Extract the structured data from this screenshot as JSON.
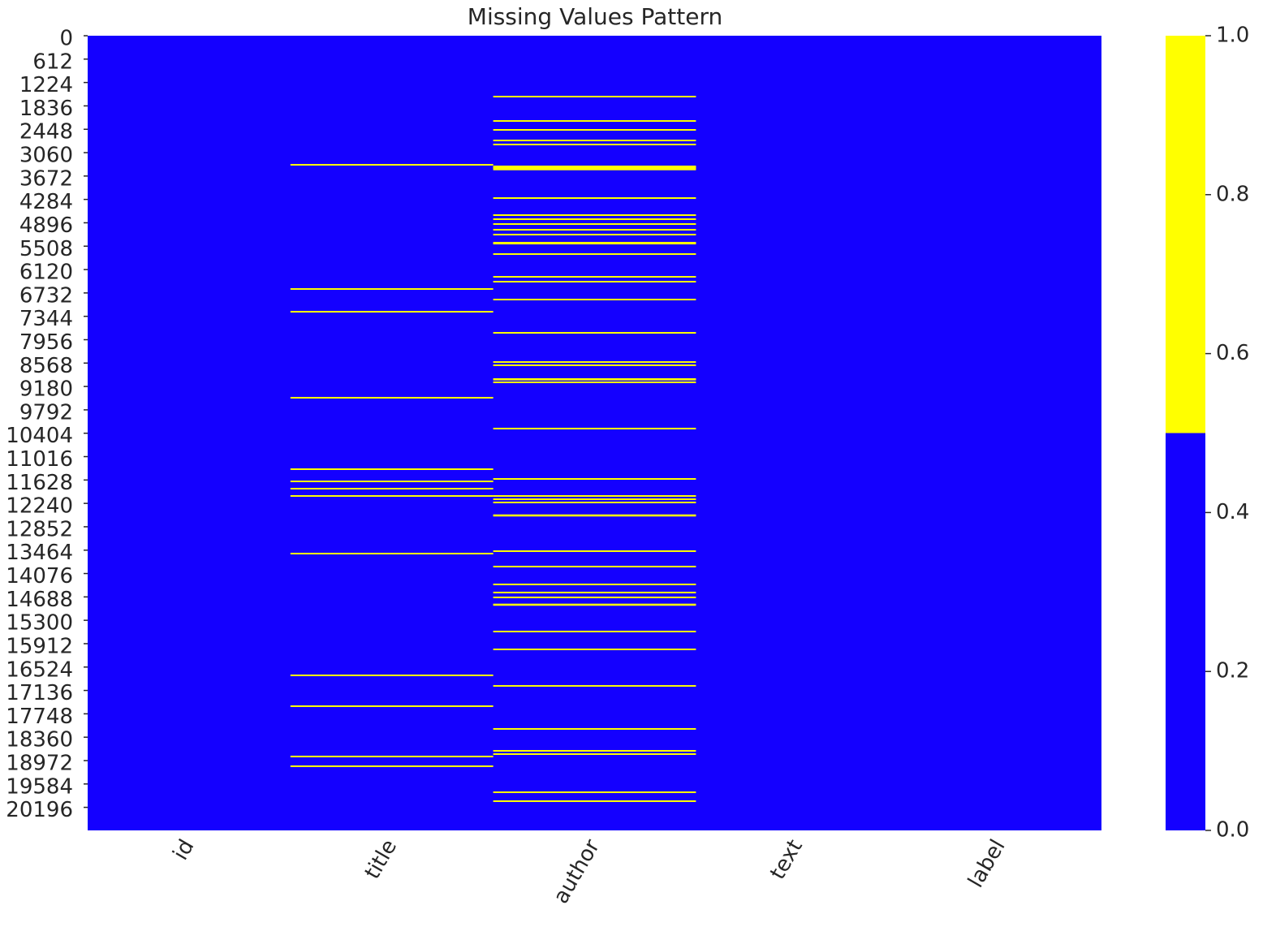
{
  "chart_data": {
    "type": "heatmap",
    "title": "Missing Values Pattern",
    "categories": [
      "id",
      "title",
      "author",
      "text",
      "label"
    ],
    "ylim": [
      0,
      20800
    ],
    "yticks": [
      0,
      612,
      1224,
      1836,
      2448,
      3060,
      3672,
      4284,
      4896,
      5508,
      6120,
      6732,
      7344,
      7956,
      8568,
      9180,
      9792,
      10404,
      11016,
      11628,
      12240,
      12852,
      13464,
      14076,
      14688,
      15300,
      15912,
      16524,
      17136,
      17748,
      18360,
      18972,
      19584,
      20196
    ],
    "missing_rows": [
      [],
      [
        3378,
        6629,
        7224,
        9475,
        11345,
        11664,
        11855,
        12046,
        13554,
        16741,
        17548,
        18865,
        19120
      ],
      [
        1593,
        2231,
        2464,
        2741,
        2847,
        3420,
        3440,
        3460,
        3480,
        3500,
        4249,
        4695,
        4801,
        4929,
        5078,
        5205,
        5418,
        5430,
        5440,
        5715,
        6310,
        6437,
        6905,
        7776,
        8540,
        8625,
        8986,
        9000,
        9071,
        10282,
        11600,
        12046,
        12131,
        12216,
        12550,
        12562,
        13490,
        13894,
        14361,
        14573,
        14701,
        14886,
        14898,
        15594,
        16061,
        17017,
        18143,
        18717,
        18802,
        19801,
        20034
      ],
      [],
      []
    ],
    "colormap": [
      "#1400ff",
      "#ffff00"
    ],
    "clim": [
      0,
      1
    ],
    "colorbar_ticks": [
      {
        "value": 0,
        "label": "0.0"
      },
      {
        "value": 0.2,
        "label": "0.2"
      },
      {
        "value": 0.4,
        "label": "0.4"
      },
      {
        "value": 0.6,
        "label": "0.6"
      },
      {
        "value": 0.8,
        "label": "0.8"
      },
      {
        "value": 1,
        "label": "1.0"
      }
    ]
  }
}
